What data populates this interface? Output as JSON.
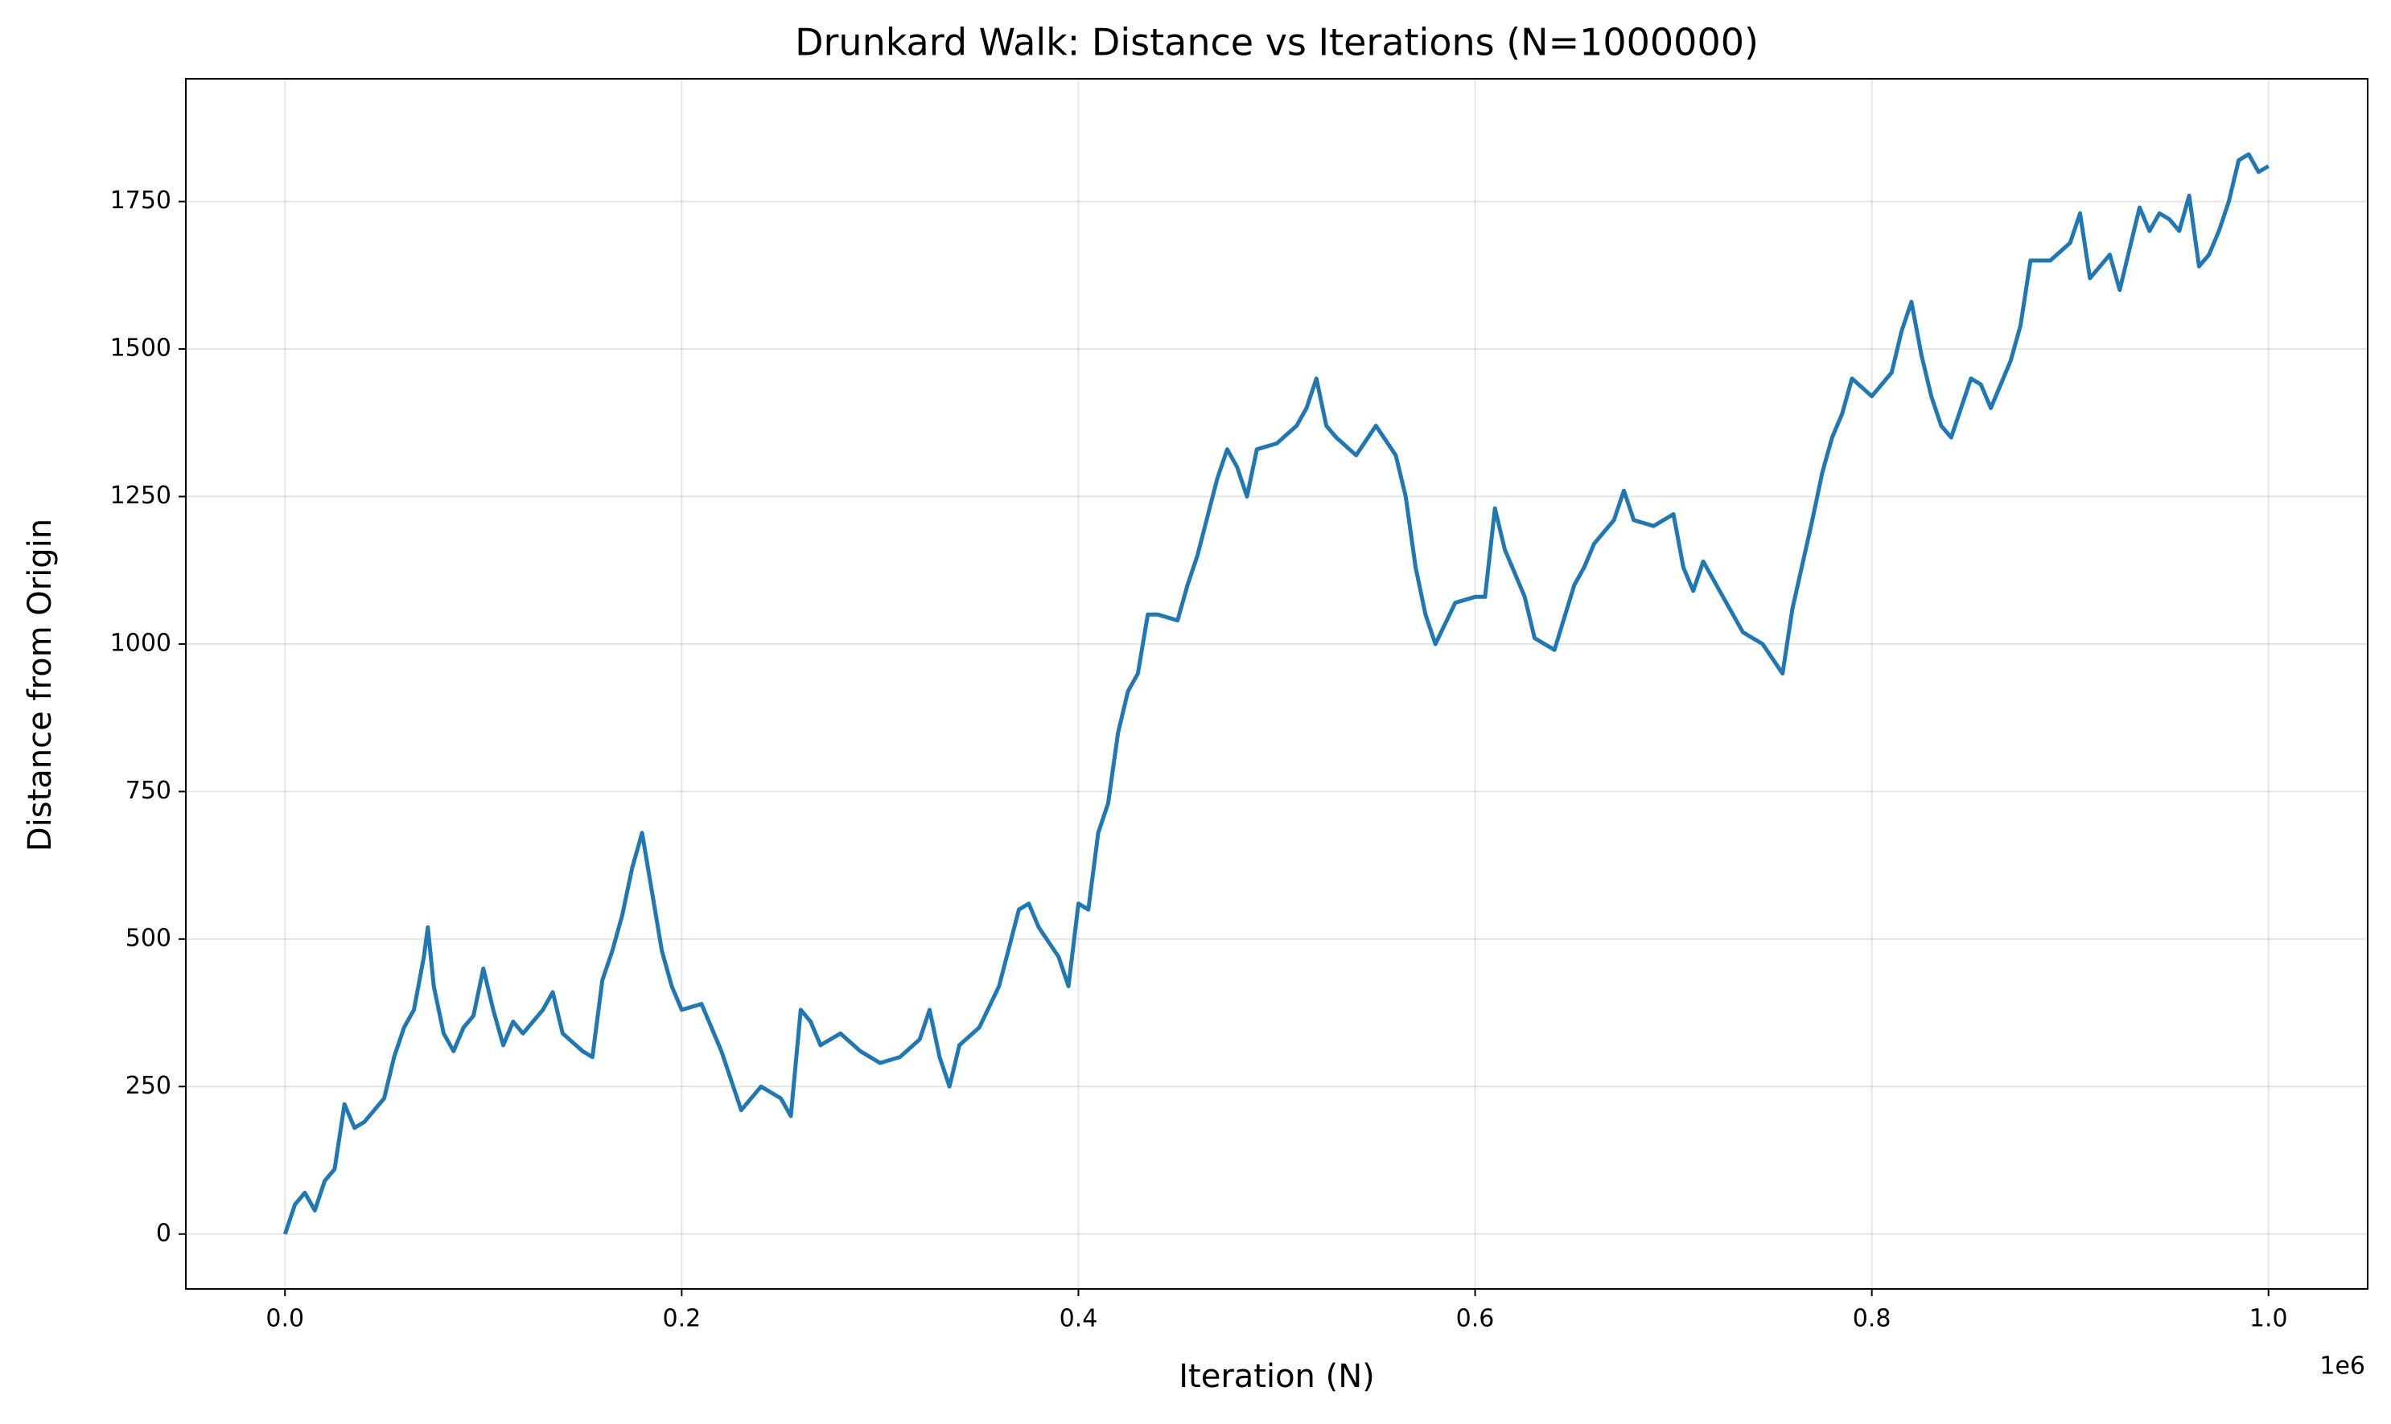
{
  "chart_data": {
    "type": "line",
    "title": "Drunkard Walk: Distance vs Iterations (N=1000000)",
    "xlabel": "Iteration (N)",
    "ylabel": "Distance from Origin",
    "x_offset_label": "1e6",
    "color": "#1f77b4",
    "grid": true,
    "xlim": [
      -50000,
      1050000
    ],
    "ylim": [
      -93,
      1958
    ],
    "xticks": [
      {
        "value": 0,
        "label": "0.0"
      },
      {
        "value": 200000,
        "label": "0.2"
      },
      {
        "value": 400000,
        "label": "0.4"
      },
      {
        "value": 600000,
        "label": "0.6"
      },
      {
        "value": 800000,
        "label": "0.8"
      },
      {
        "value": 1000000,
        "label": "1.0"
      }
    ],
    "yticks": [
      0,
      250,
      500,
      750,
      1000,
      1250,
      1500,
      1750
    ],
    "x": [
      0,
      5000,
      10000,
      15000,
      20000,
      25000,
      30000,
      35000,
      40000,
      50000,
      55000,
      60000,
      65000,
      70000,
      72000,
      75000,
      80000,
      85000,
      90000,
      95000,
      100000,
      105000,
      110000,
      115000,
      120000,
      130000,
      135000,
      140000,
      150000,
      155000,
      160000,
      165000,
      170000,
      175000,
      180000,
      185000,
      190000,
      195000,
      200000,
      210000,
      220000,
      225000,
      230000,
      240000,
      250000,
      255000,
      260000,
      265000,
      270000,
      280000,
      290000,
      300000,
      310000,
      320000,
      325000,
      330000,
      335000,
      340000,
      350000,
      360000,
      370000,
      375000,
      380000,
      390000,
      395000,
      400000,
      405000,
      410000,
      415000,
      420000,
      425000,
      430000,
      435000,
      440000,
      450000,
      455000,
      460000,
      470000,
      475000,
      480000,
      485000,
      490000,
      500000,
      510000,
      515000,
      520000,
      525000,
      530000,
      540000,
      550000,
      560000,
      565000,
      570000,
      575000,
      580000,
      590000,
      600000,
      605000,
      610000,
      615000,
      620000,
      625000,
      630000,
      640000,
      650000,
      655000,
      660000,
      670000,
      675000,
      680000,
      690000,
      700000,
      705000,
      710000,
      715000,
      725000,
      730000,
      735000,
      745000,
      755000,
      760000,
      770000,
      775000,
      780000,
      785000,
      790000,
      800000,
      810000,
      815000,
      820000,
      825000,
      830000,
      835000,
      840000,
      845000,
      850000,
      855000,
      860000,
      865000,
      870000,
      875000,
      880000,
      890000,
      900000,
      905000,
      910000,
      915000,
      920000,
      925000,
      930000,
      935000,
      940000,
      945000,
      950000,
      955000,
      960000,
      965000,
      970000,
      975000,
      980000,
      985000,
      990000,
      995000,
      1000000
    ],
    "values": [
      0,
      50,
      70,
      40,
      90,
      110,
      220,
      180,
      190,
      230,
      300,
      350,
      380,
      470,
      520,
      420,
      340,
      310,
      350,
      370,
      450,
      380,
      320,
      360,
      340,
      380,
      410,
      340,
      310,
      300,
      430,
      480,
      540,
      620,
      680,
      580,
      480,
      420,
      380,
      390,
      310,
      260,
      210,
      250,
      230,
      200,
      380,
      360,
      320,
      340,
      310,
      290,
      300,
      330,
      380,
      300,
      250,
      320,
      350,
      420,
      550,
      560,
      520,
      470,
      420,
      560,
      550,
      680,
      730,
      850,
      920,
      950,
      1050,
      1050,
      1040,
      1100,
      1150,
      1280,
      1330,
      1300,
      1250,
      1330,
      1340,
      1370,
      1400,
      1450,
      1370,
      1350,
      1320,
      1370,
      1320,
      1250,
      1130,
      1050,
      1000,
      1070,
      1080,
      1080,
      1230,
      1160,
      1120,
      1080,
      1010,
      990,
      1100,
      1130,
      1170,
      1210,
      1260,
      1210,
      1200,
      1220,
      1130,
      1090,
      1140,
      1080,
      1050,
      1020,
      1000,
      950,
      1060,
      1210,
      1290,
      1350,
      1390,
      1450,
      1420,
      1460,
      1530,
      1580,
      1490,
      1420,
      1370,
      1350,
      1400,
      1450,
      1440,
      1400,
      1440,
      1480,
      1540,
      1650,
      1650,
      1680,
      1730,
      1620,
      1640,
      1660,
      1600,
      1670,
      1740,
      1700,
      1730,
      1720,
      1700,
      1760,
      1640,
      1660,
      1700,
      1750,
      1820,
      1830,
      1800,
      1810
    ]
  }
}
